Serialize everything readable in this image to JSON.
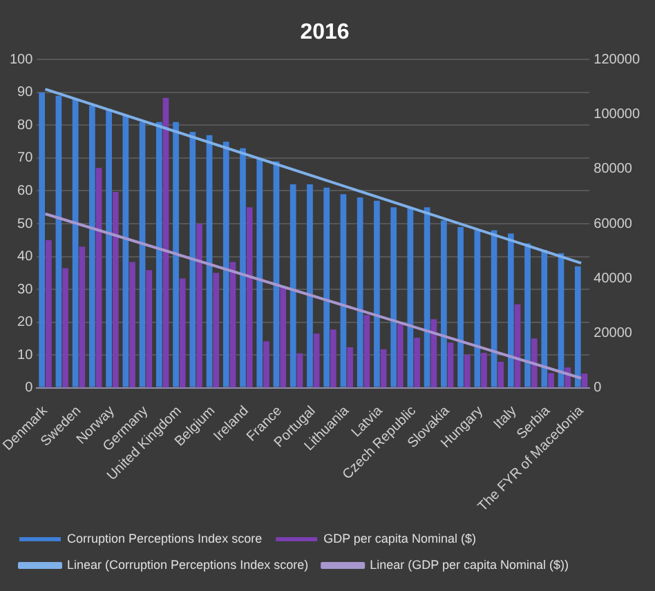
{
  "chart_data": {
    "type": "bar",
    "title": "2016",
    "categories": [
      "Denmark",
      null,
      "Sweden",
      null,
      "Norway",
      null,
      "Germany",
      null,
      "United Kingdom",
      null,
      "Belgium",
      null,
      "Ireland",
      null,
      "France",
      null,
      "Portugal",
      null,
      "Lithuania",
      null,
      "Latvia",
      null,
      "Czech Republic",
      null,
      "Slovakia",
      null,
      "Hungary",
      null,
      "Italy",
      null,
      "Serbia",
      null,
      "The FYR of Macedonia"
    ],
    "series": [
      {
        "name": "Corruption Perceptions Index score",
        "color": "#3f7fd6",
        "values": [
          90,
          89,
          88,
          86,
          85,
          83,
          81,
          81,
          81,
          78,
          77,
          75,
          73,
          70,
          69,
          62,
          62,
          61,
          59,
          58,
          57,
          55,
          55,
          55,
          51,
          49,
          48,
          48,
          47,
          44,
          42,
          41,
          37
        ]
      },
      {
        "name": "GDP per capita Nominal ($)",
        "axis": "y2",
        "color": "#7a3fb0",
        "values": [
          54000,
          43700,
          51600,
          80400,
          71600,
          46000,
          43000,
          106000,
          40000,
          60000,
          42000,
          46000,
          66000,
          17000,
          37000,
          12600,
          19800,
          21300,
          14800,
          26600,
          14100,
          23300,
          18300,
          25100,
          16500,
          12100,
          12800,
          9500,
          30500,
          18000,
          5400,
          7400,
          5200
        ]
      },
      {
        "name": "Linear (Corruption Perceptions Index score)",
        "type": "line",
        "color": "#7fb0e8",
        "x": [
          "Denmark",
          "The FYR of Macedonia"
        ],
        "values": [
          91,
          38
        ]
      },
      {
        "name": "Linear (GDP per capita Nominal ($))",
        "type": "line",
        "axis": "y2",
        "color": "#a897cf",
        "x": [
          "Denmark",
          "The FYR of Macedonia"
        ],
        "values": [
          63600,
          3500
        ]
      }
    ],
    "ylim": [
      0,
      100
    ],
    "yticks": [
      0,
      10,
      20,
      30,
      40,
      50,
      60,
      70,
      80,
      90,
      100
    ],
    "y2lim": [
      0,
      120000
    ],
    "y2ticks": [
      0,
      20000,
      40000,
      60000,
      80000,
      100000,
      120000
    ],
    "grid": "y",
    "legend": "bottom"
  }
}
